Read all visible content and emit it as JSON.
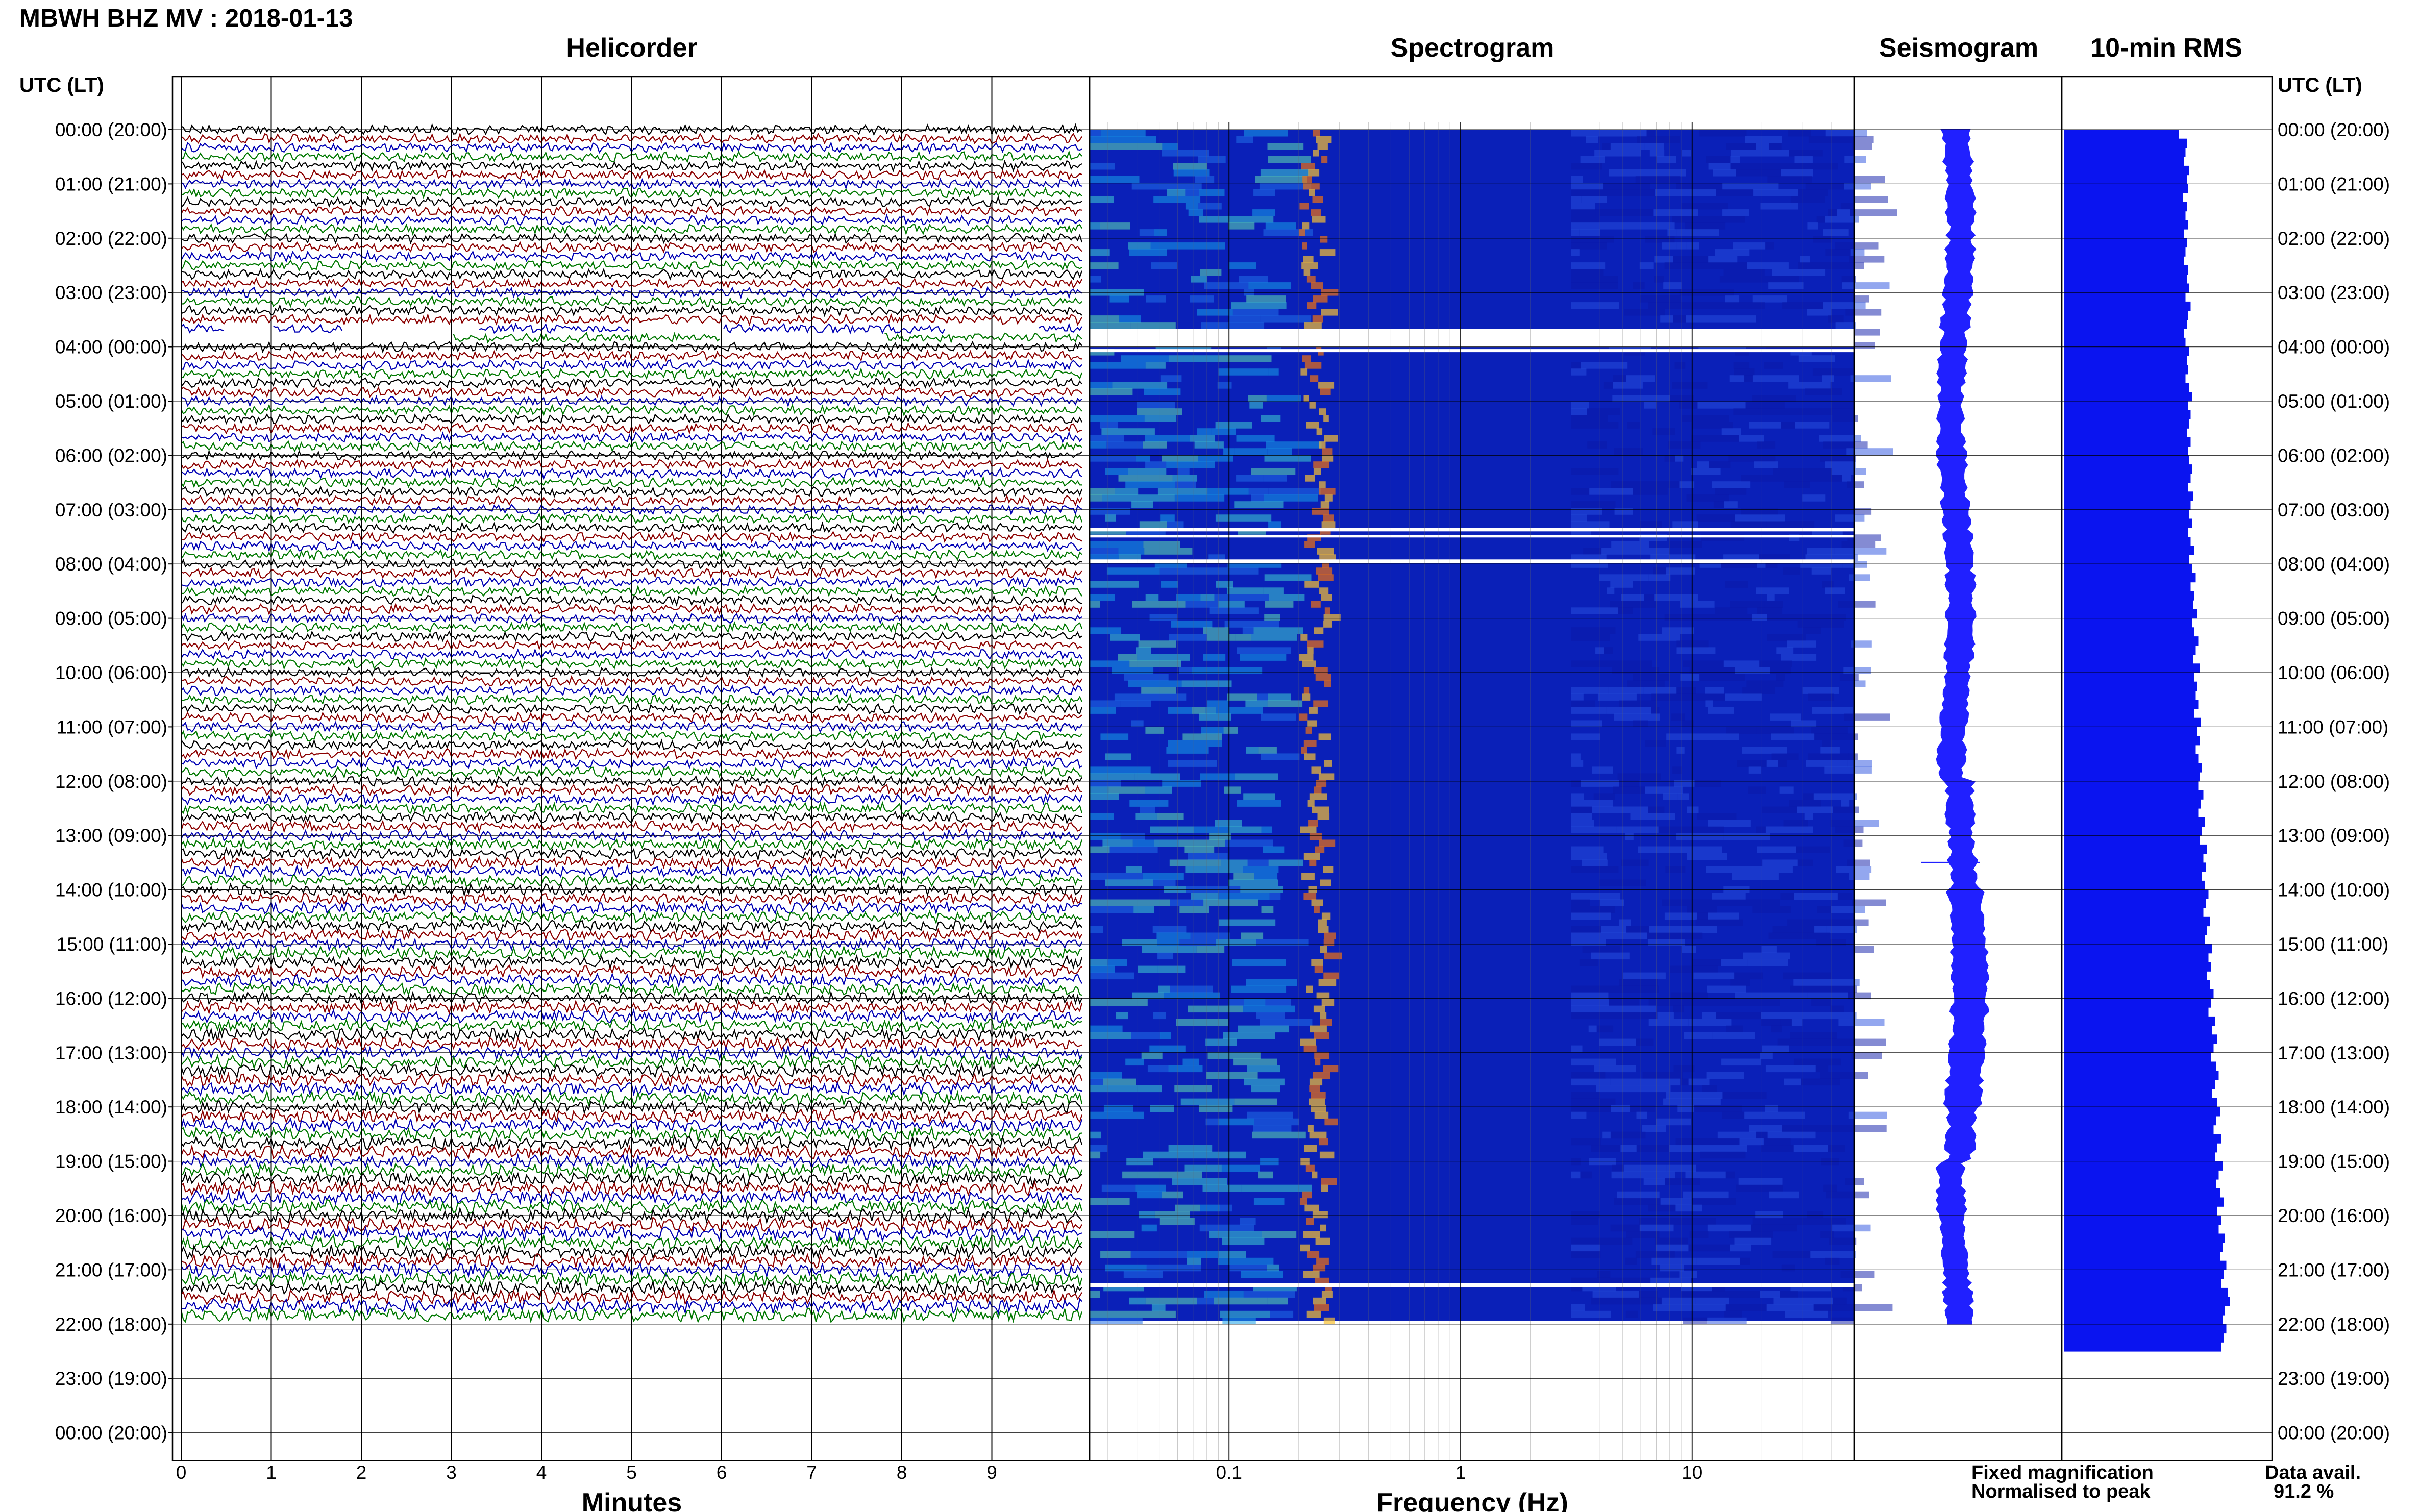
{
  "title": "MBWH BHZ MV : 2018-01-13",
  "panels": {
    "helicorder": "Helicorder",
    "spectrogram": "Spectrogram",
    "seismogram": "Seismogram",
    "rms": "10-min RMS"
  },
  "axis_header_left": "UTC (LT)",
  "axis_header_right": "UTC (LT)",
  "xlabel_helicorder": "Minutes",
  "xlabel_spectrogram": "Frequency (Hz)",
  "legend": {
    "fixed": "Fixed magnification",
    "normalised": "Normalised to peak",
    "fixed_color": "#1414ff",
    "normalised_color": "#ff1414"
  },
  "data_avail_label": "Data avail.",
  "data_avail_value": "91.2 %",
  "colors": {
    "trace_cycle": [
      "#000000",
      "#8b0000",
      "#0000b4",
      "#007800"
    ],
    "rms_bar": "#0a14f0",
    "seismogram": "#2020ff"
  },
  "chart_data": [
    {
      "type": "line",
      "name": "helicorder",
      "title": "Helicorder",
      "xlabel": "Minutes",
      "x_ticks": [
        0,
        1,
        2,
        3,
        4,
        5,
        6,
        7,
        8,
        9
      ],
      "xlim": [
        0,
        10
      ],
      "y_ticks": [
        "00:00 (20:00)",
        "01:00 (21:00)",
        "02:00 (22:00)",
        "03:00 (23:00)",
        "04:00 (00:00)",
        "05:00 (01:00)",
        "06:00 (02:00)",
        "07:00 (03:00)",
        "08:00 (04:00)",
        "09:00 (05:00)",
        "10:00 (06:00)",
        "11:00 (07:00)",
        "12:00 (08:00)",
        "13:00 (09:00)",
        "14:00 (10:00)",
        "15:00 (11:00)",
        "16:00 (12:00)",
        "17:00 (13:00)",
        "18:00 (14:00)",
        "19:00 (15:00)",
        "20:00 (16:00)",
        "21:00 (17:00)",
        "22:00 (18:00)",
        "23:00 (19:00)",
        "00:00 (20:00)"
      ],
      "grid": true
    },
    {
      "type": "heatmap",
      "name": "spectrogram",
      "title": "Spectrogram",
      "xlabel": "Frequency (Hz)",
      "x_scale": "log",
      "x_tick_labels": [
        "0.1",
        "1",
        "10"
      ],
      "xlim": [
        0.025,
        50
      ],
      "peak_band_hz": [
        0.18,
        0.3
      ],
      "data_gaps_utc": [
        "03:40",
        "07:20",
        "07:55",
        "21:15"
      ]
    },
    {
      "type": "line",
      "name": "seismogram",
      "title": "Seismogram",
      "spike_utc": "13:30"
    },
    {
      "type": "bar",
      "name": "rms",
      "title": "10-min RMS",
      "orientation": "horizontal",
      "bin_minutes": 10,
      "values": [
        0.9,
        0.96,
        0.95,
        0.94,
        0.98,
        0.96,
        0.97,
        0.93,
        0.96,
        0.95,
        0.97,
        0.94,
        0.96,
        0.95,
        0.94,
        0.97,
        0.96,
        0.98,
        0.95,
        0.99,
        0.97,
        0.96,
        0.94,
        0.95,
        0.98,
        0.96,
        0.97,
        0.95,
        0.98,
        1.0,
        0.97,
        0.99,
        0.98,
        0.96,
        0.99,
        0.97,
        0.98,
        1.0,
        0.99,
        0.97,
        1.01,
        0.99,
        0.98,
        1.0,
        0.97,
        0.99,
        1.02,
        0.98,
        1.0,
        1.03,
        0.99,
        1.02,
        1.01,
        1.04,
        1.0,
        1.02,
        1.05,
        1.03,
        1.01,
        1.06,
        1.02,
        1.04,
        1.03,
        1.05,
        1.02,
        1.07,
        1.04,
        1.06,
        1.03,
        1.05,
        1.08,
        1.06,
        1.05,
        1.09,
        1.07,
        1.05,
        1.1,
        1.08,
        1.06,
        1.12,
        1.09,
        1.11,
        1.08,
        1.1,
        1.13,
        1.11,
        1.09,
        1.14,
        1.12,
        1.1,
        1.16,
        1.13,
        1.15,
        1.12,
        1.14,
        1.17,
        1.15,
        1.13,
        1.18,
        1.16,
        1.2,
        1.17,
        1.15,
        1.19,
        1.21,
        1.18,
        1.16,
        1.2,
        1.22,
        1.19,
        1.17,
        1.23,
        1.2,
        1.18,
        1.24,
        1.21,
        1.19,
        1.22,
        1.25,
        1.2,
        1.23,
        1.21,
        1.26,
        1.24,
        1.22,
        1.27,
        1.25,
        1.23,
        1.28,
        1.3,
        1.26,
        1.24,
        1.27,
        1.25,
        1.23
      ],
      "fill_color": "#0a14f0"
    }
  ]
}
